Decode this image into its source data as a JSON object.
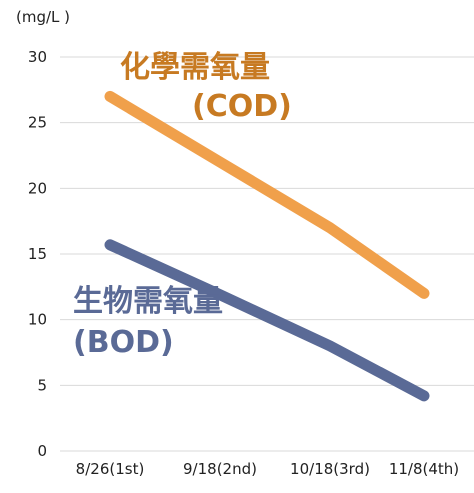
{
  "chart_data": {
    "type": "line",
    "y_unit_label": "(mg/L )",
    "categories": [
      "8/26(1st)",
      "9/18(2nd)",
      "10/18(3rd)",
      "11/8(4th)"
    ],
    "ylim": [
      0,
      30
    ],
    "yticks": [
      0,
      5,
      10,
      15,
      20,
      25,
      30
    ],
    "grid": true,
    "series": [
      {
        "name_line1": "化學需氧量",
        "name_line2": "(COD)",
        "values": [
          27,
          22,
          17,
          12
        ],
        "color": "#f0a04b"
      },
      {
        "name_line1": "生物需氧量",
        "name_line2": "(BOD)",
        "values": [
          15.7,
          11.9,
          8.0,
          4.2
        ],
        "color": "#5a6a96"
      }
    ]
  }
}
